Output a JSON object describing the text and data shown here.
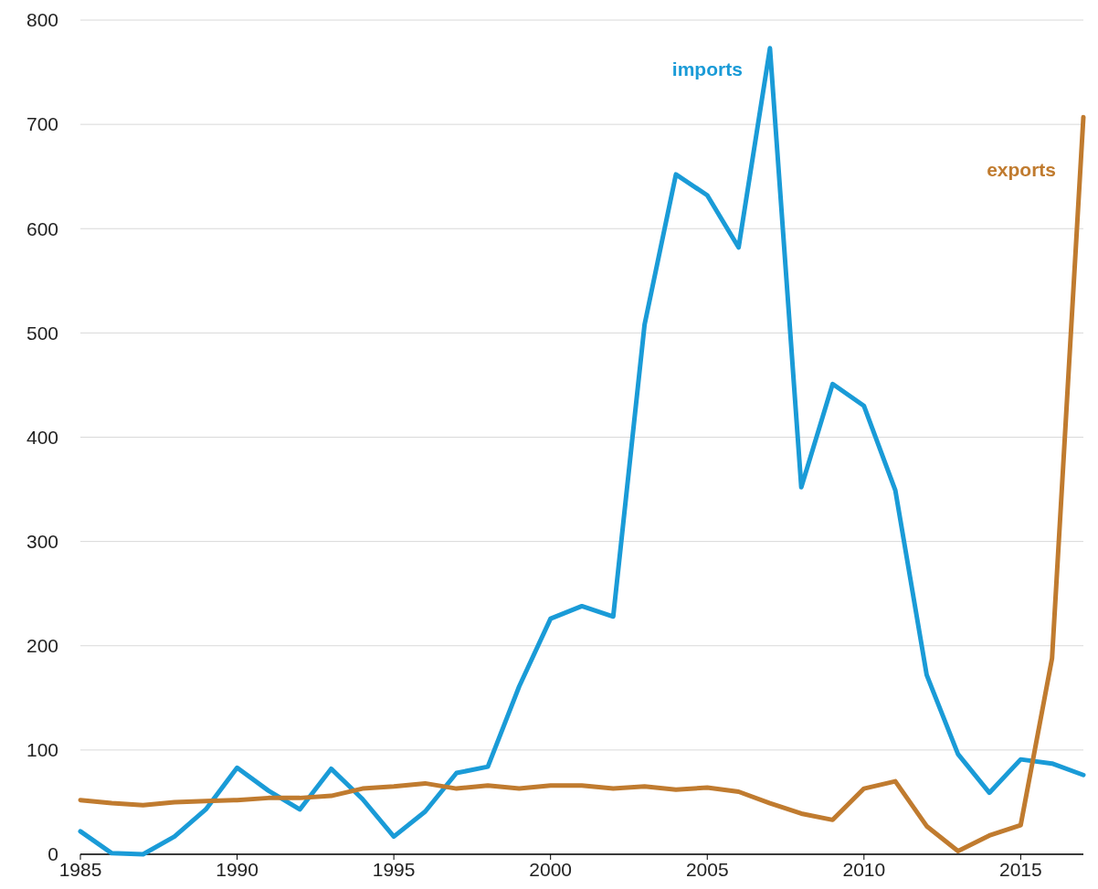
{
  "chart_data": {
    "type": "line",
    "x": [
      1985,
      1986,
      1987,
      1988,
      1989,
      1990,
      1991,
      1992,
      1993,
      1994,
      1995,
      1996,
      1997,
      1998,
      1999,
      2000,
      2001,
      2002,
      2003,
      2004,
      2005,
      2006,
      2007,
      2008,
      2009,
      2010,
      2011,
      2012,
      2013,
      2014,
      2015,
      2016,
      2017
    ],
    "series": [
      {
        "name": "imports",
        "color": "#1a9bd7",
        "values": [
          22,
          1,
          0,
          17,
          43,
          83,
          61,
          43,
          82,
          53,
          17,
          41,
          78,
          84,
          161,
          226,
          238,
          228,
          508,
          652,
          632,
          582,
          773,
          352,
          451,
          430,
          349,
          172,
          96,
          59,
          91,
          87,
          76
        ]
      },
      {
        "name": "exports",
        "color": "#c07b2f",
        "values": [
          52,
          49,
          47,
          50,
          51,
          52,
          54,
          54,
          56,
          63,
          65,
          68,
          63,
          66,
          63,
          66,
          66,
          63,
          65,
          62,
          64,
          60,
          49,
          39,
          33,
          63,
          70,
          27,
          3,
          18,
          28,
          188,
          707
        ]
      }
    ],
    "xlim": [
      1985,
      2017
    ],
    "xticks": [
      1985,
      1990,
      1995,
      2000,
      2005,
      2010,
      2015
    ],
    "ylim": [
      0,
      800
    ],
    "yticks": [
      0,
      100,
      200,
      300,
      400,
      500,
      600,
      700,
      800
    ],
    "grid": "y"
  }
}
